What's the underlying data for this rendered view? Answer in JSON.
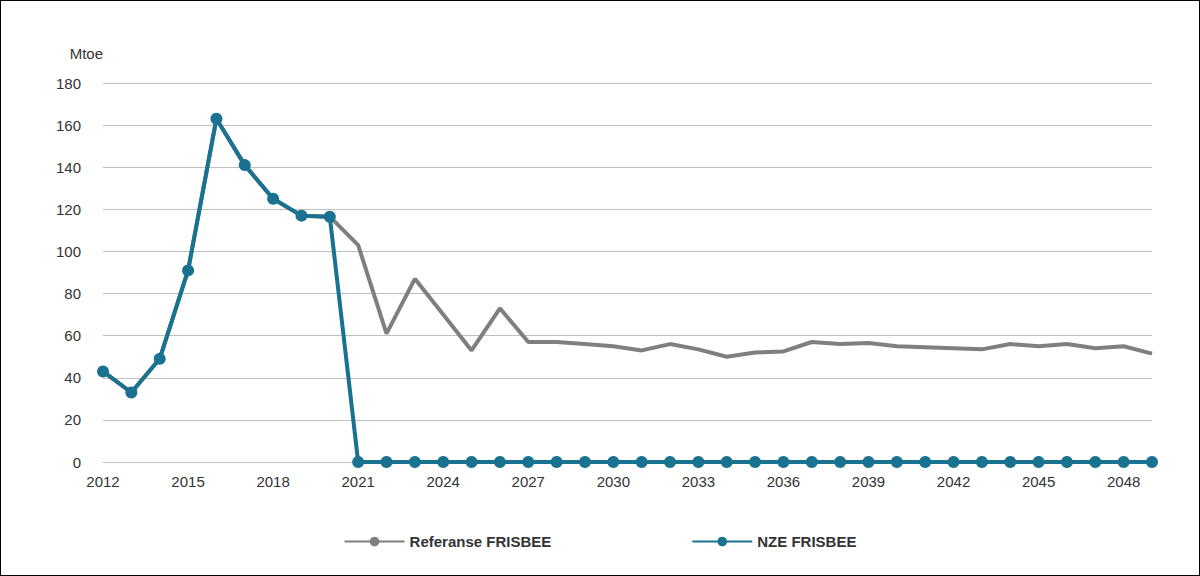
{
  "chart_data": {
    "type": "line",
    "y_label": "Mtoe",
    "categories": [
      "2012",
      null,
      null,
      "2015",
      null,
      null,
      "2018",
      null,
      null,
      "2021",
      null,
      null,
      "2024",
      null,
      null,
      "2027",
      null,
      null,
      "2030",
      null,
      null,
      "2033",
      null,
      null,
      "2036",
      null,
      null,
      "2039",
      null,
      null,
      "2042",
      null,
      null,
      "2045",
      null,
      null,
      "2048",
      null
    ],
    "series": [
      {
        "name": "Referanse FRISBEE",
        "color": "#7f7f7f",
        "marker": "none",
        "values": [
          43,
          33,
          49,
          91,
          163,
          141,
          125,
          117,
          116.5,
          103,
          61,
          87,
          70,
          53,
          73,
          57,
          57,
          56,
          55,
          53,
          56,
          53.5,
          50,
          52,
          52.5,
          57,
          56,
          56.5,
          55,
          54.5,
          54,
          53.5,
          56,
          55,
          56,
          54,
          55,
          51.5
        ]
      },
      {
        "name": "NZE FRISBEE",
        "color": "#1a7291",
        "marker": "circle",
        "values": [
          43,
          33,
          49,
          91,
          163,
          141,
          125,
          117,
          116.5,
          0,
          0,
          0,
          0,
          0,
          0,
          0,
          0,
          0,
          0,
          0,
          0,
          0,
          0,
          0,
          0,
          0,
          0,
          0,
          0,
          0,
          0,
          0,
          0,
          0,
          0,
          0,
          0,
          0
        ]
      }
    ],
    "ylim": [
      0,
      180
    ],
    "yticks": [
      0,
      20,
      40,
      60,
      80,
      100,
      120,
      140,
      160,
      180
    ],
    "grid": true,
    "legend": "bottom"
  }
}
